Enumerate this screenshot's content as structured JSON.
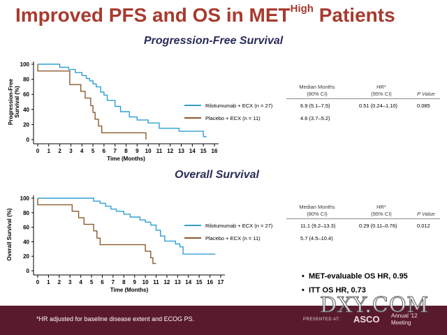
{
  "slide": {
    "title_main": "Improved PFS and OS in MET",
    "title_sup": "High",
    "title_end": " Patients",
    "footnote": "*HR adjusted for baseline disease extent and ECOG PS.",
    "presented_at": "PRESENTED AT:",
    "asco": "ASCO",
    "meeting_line1": "Annual '12",
    "meeting_line2": "Meeting",
    "watermark": "DXY.COM"
  },
  "bullets": [
    "MET-evaluable OS HR, 0.95",
    "ITT OS HR, 0.73"
  ],
  "colors": {
    "rilotumumab": "#2e9fd2",
    "placebo": "#8b5a2b",
    "title": "#a83a2e",
    "footer": "#5a1a2e"
  },
  "pfs": {
    "section_title": "Progression-Free Survival",
    "table": {
      "col1_h1": "Median Months",
      "col1_h2": "(80% CI)",
      "col2_h1": "HR*",
      "col2_h2": "(95% CI)",
      "col3": "P Value",
      "row1_label": "Rilotumumab + ECX (n = 27)",
      "row1_median": "6.9 (5.1–7.5)",
      "row1_hr": "0.51 (0.24–1.10)",
      "row1_p": "0.085",
      "row2_label": "Placebo + ECX (n = 11)",
      "row2_median": "4.6 (3.7–5.2)"
    }
  },
  "os": {
    "section_title": "Overall Survival",
    "table": {
      "col1_h1": "Median Months",
      "col1_h2": "(80% CI)",
      "col2_h1": "HR*",
      "col2_h2": "(95% CI)",
      "col3": "P Value",
      "row1_label": "Rilotumumab + ECX (n = 27)",
      "row1_median": "11.1 (9.2–13.3)",
      "row1_hr": "0.29 (0.11–0.76)",
      "row1_p": "0.012",
      "row2_label": "Placebo + ECX (n = 11)",
      "row2_median": "5.7 (4.5–10.4)"
    }
  },
  "chart_data": [
    {
      "type": "line",
      "title": "Progression-Free Survival",
      "xlabel": "Time (Months)",
      "ylabel": "Progression-Free Survival (%)",
      "xlim": [
        0,
        16
      ],
      "ylim": [
        0,
        100
      ],
      "xticks": [
        "0",
        "1",
        "2",
        "3",
        "4",
        "5",
        "6",
        "7",
        "8",
        "9",
        "10",
        "11",
        "12",
        "13",
        "14",
        "15",
        "16"
      ],
      "yticks": [
        "0",
        "20",
        "40",
        "60",
        "80",
        "100"
      ],
      "series": [
        {
          "name": "Rilotumumab + ECX (n = 27)",
          "color": "#2e9fd2",
          "points": [
            [
              0,
              100
            ],
            [
              2,
              100
            ],
            [
              2,
              96
            ],
            [
              2.8,
              96
            ],
            [
              2.8,
              93
            ],
            [
              3.4,
              93
            ],
            [
              3.4,
              89
            ],
            [
              4.0,
              89
            ],
            [
              4.0,
              85
            ],
            [
              4.4,
              85
            ],
            [
              4.4,
              81
            ],
            [
              4.7,
              81
            ],
            [
              4.7,
              78
            ],
            [
              5.0,
              78
            ],
            [
              5.0,
              74
            ],
            [
              5.3,
              74
            ],
            [
              5.3,
              70
            ],
            [
              5.7,
              70
            ],
            [
              5.7,
              63
            ],
            [
              6.0,
              63
            ],
            [
              6.0,
              59
            ],
            [
              6.3,
              59
            ],
            [
              6.3,
              52
            ],
            [
              7.0,
              52
            ],
            [
              7.0,
              44
            ],
            [
              7.5,
              44
            ],
            [
              7.5,
              37
            ],
            [
              8.3,
              37
            ],
            [
              8.3,
              30
            ],
            [
              9.0,
              30
            ],
            [
              9.0,
              26
            ],
            [
              10.0,
              26
            ],
            [
              10.0,
              22
            ],
            [
              11.0,
              22
            ],
            [
              11.0,
              15
            ],
            [
              12.8,
              15
            ],
            [
              12.8,
              11
            ],
            [
              15.0,
              11
            ],
            [
              15.0,
              4
            ],
            [
              15.3,
              4
            ]
          ]
        },
        {
          "name": "Placebo + ECX (n = 11)",
          "color": "#8b5a2b",
          "points": [
            [
              0,
              100
            ],
            [
              0,
              91
            ],
            [
              2.9,
              91
            ],
            [
              2.9,
              73
            ],
            [
              3.9,
              73
            ],
            [
              3.9,
              64
            ],
            [
              4.3,
              64
            ],
            [
              4.3,
              55
            ],
            [
              4.8,
              55
            ],
            [
              4.8,
              45
            ],
            [
              5.0,
              45
            ],
            [
              5.0,
              36
            ],
            [
              5.2,
              36
            ],
            [
              5.2,
              27
            ],
            [
              5.5,
              27
            ],
            [
              5.5,
              18
            ],
            [
              5.8,
              18
            ],
            [
              5.8,
              9
            ],
            [
              9.8,
              9
            ],
            [
              9.8,
              0
            ]
          ]
        }
      ]
    },
    {
      "type": "line",
      "title": "Overall Survival",
      "xlabel": "Time (Months)",
      "ylabel": "Overall Survival (%)",
      "xlim": [
        0,
        17
      ],
      "ylim": [
        0,
        100
      ],
      "xticks": [
        "0",
        "1",
        "2",
        "3",
        "4",
        "5",
        "6",
        "7",
        "8",
        "9",
        "10",
        "11",
        "12",
        "13",
        "14",
        "15",
        "16",
        "17"
      ],
      "yticks": [
        "0",
        "20",
        "40",
        "60",
        "80",
        "100"
      ],
      "series": [
        {
          "name": "Rilotumumab + ECX (n = 27)",
          "color": "#2e9fd2",
          "points": [
            [
              0,
              100
            ],
            [
              5.2,
              100
            ],
            [
              5.2,
              96
            ],
            [
              5.8,
              96
            ],
            [
              5.8,
              93
            ],
            [
              6.3,
              93
            ],
            [
              6.3,
              89
            ],
            [
              6.8,
              89
            ],
            [
              6.8,
              85
            ],
            [
              7.3,
              85
            ],
            [
              7.3,
              82
            ],
            [
              8.0,
              82
            ],
            [
              8.0,
              78
            ],
            [
              8.6,
              78
            ],
            [
              8.6,
              74
            ],
            [
              9.5,
              74
            ],
            [
              9.5,
              70
            ],
            [
              10.0,
              70
            ],
            [
              10.0,
              67
            ],
            [
              10.5,
              67
            ],
            [
              10.5,
              63
            ],
            [
              11.0,
              63
            ],
            [
              11.0,
              56
            ],
            [
              11.4,
              56
            ],
            [
              11.4,
              48
            ],
            [
              11.8,
              48
            ],
            [
              11.8,
              41
            ],
            [
              12.8,
              41
            ],
            [
              12.8,
              37
            ],
            [
              13.2,
              37
            ],
            [
              13.2,
              33
            ],
            [
              13.5,
              33
            ],
            [
              13.5,
              23
            ],
            [
              15.0,
              23
            ],
            [
              16.0,
              23
            ],
            [
              16.5,
              23
            ]
          ]
        },
        {
          "name": "Placebo + ECX (n = 11)",
          "color": "#8b5a2b",
          "points": [
            [
              0,
              100
            ],
            [
              0,
              91
            ],
            [
              3.2,
              91
            ],
            [
              3.2,
              82
            ],
            [
              3.8,
              82
            ],
            [
              3.8,
              73
            ],
            [
              4.3,
              73
            ],
            [
              4.3,
              64
            ],
            [
              5.2,
              64
            ],
            [
              5.2,
              55
            ],
            [
              5.5,
              55
            ],
            [
              5.5,
              45
            ],
            [
              5.8,
              45
            ],
            [
              5.8,
              36
            ],
            [
              10.0,
              36
            ],
            [
              10.0,
              27
            ],
            [
              10.5,
              27
            ],
            [
              10.5,
              18
            ],
            [
              10.7,
              18
            ],
            [
              10.7,
              10
            ],
            [
              11.0,
              10
            ]
          ]
        }
      ]
    }
  ]
}
